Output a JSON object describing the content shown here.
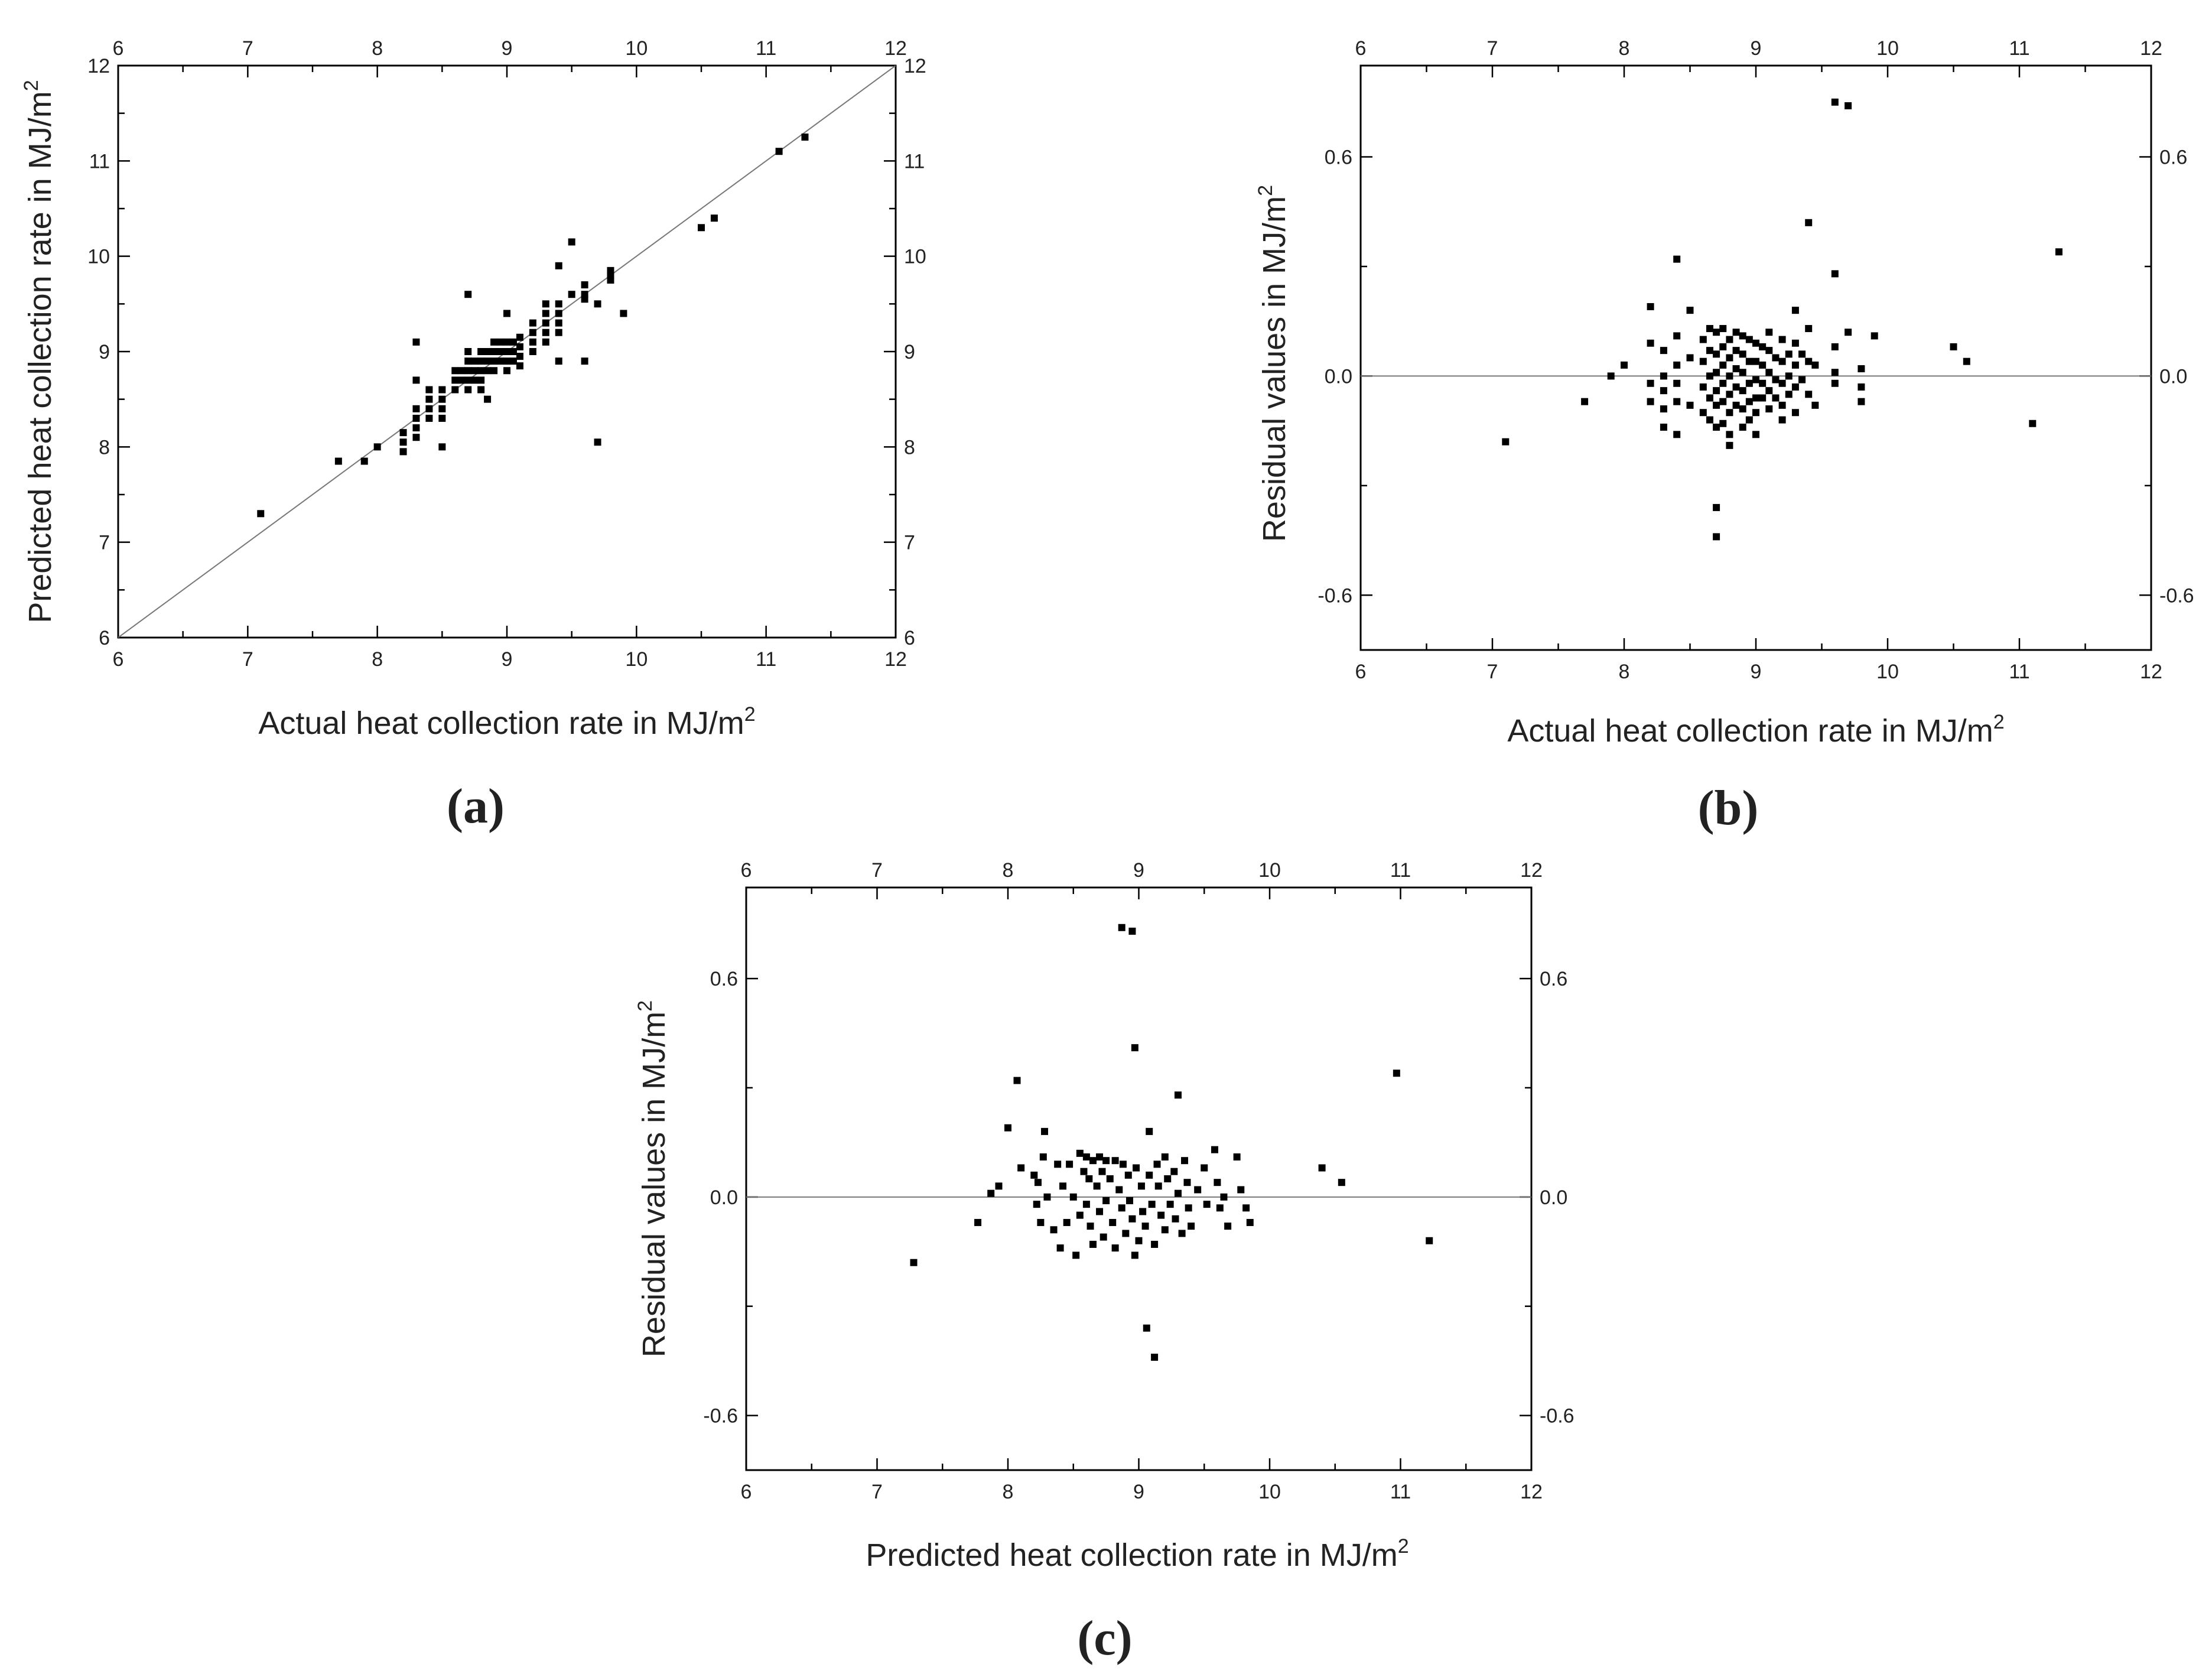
{
  "chart_data": [
    {
      "panel": "(a)",
      "type": "scatter",
      "xlabel": "Actual heat collection rate in MJ/m",
      "ylabel": "Predicted heat collection rate in MJ/m",
      "unit_superscript": "2",
      "xlim": [
        6,
        12
      ],
      "ylim": [
        6,
        12
      ],
      "x_ticks": [
        6,
        7,
        8,
        9,
        10,
        11,
        12
      ],
      "y_ticks": [
        6,
        7,
        8,
        9,
        10,
        11,
        12
      ],
      "y_tick_labels": [
        "6",
        "7",
        "8",
        "9",
        "10",
        "11",
        "12"
      ],
      "grid": false,
      "reference_line": "y = x",
      "points": [
        [
          7.1,
          7.3
        ],
        [
          7.7,
          7.85
        ],
        [
          7.9,
          7.85
        ],
        [
          8.0,
          8.0
        ],
        [
          8.2,
          7.95
        ],
        [
          8.2,
          8.05
        ],
        [
          8.2,
          8.15
        ],
        [
          8.3,
          8.1
        ],
        [
          8.3,
          8.2
        ],
        [
          8.3,
          8.3
        ],
        [
          8.3,
          8.4
        ],
        [
          8.3,
          8.7
        ],
        [
          8.3,
          9.1
        ],
        [
          8.4,
          8.3
        ],
        [
          8.4,
          8.4
        ],
        [
          8.4,
          8.5
        ],
        [
          8.4,
          8.6
        ],
        [
          8.5,
          8.0
        ],
        [
          8.5,
          8.3
        ],
        [
          8.5,
          8.4
        ],
        [
          8.5,
          8.5
        ],
        [
          8.5,
          8.6
        ],
        [
          8.6,
          8.6
        ],
        [
          8.6,
          8.7
        ],
        [
          8.6,
          8.8
        ],
        [
          8.65,
          8.7
        ],
        [
          8.65,
          8.8
        ],
        [
          8.7,
          8.6
        ],
        [
          8.7,
          8.7
        ],
        [
          8.7,
          8.8
        ],
        [
          8.7,
          8.9
        ],
        [
          8.7,
          9.0
        ],
        [
          8.7,
          9.6
        ],
        [
          8.75,
          8.7
        ],
        [
          8.75,
          8.8
        ],
        [
          8.75,
          8.9
        ],
        [
          8.8,
          8.6
        ],
        [
          8.8,
          8.7
        ],
        [
          8.8,
          8.8
        ],
        [
          8.8,
          8.9
        ],
        [
          8.8,
          9.0
        ],
        [
          8.85,
          8.5
        ],
        [
          8.85,
          8.8
        ],
        [
          8.85,
          8.9
        ],
        [
          8.85,
          9.0
        ],
        [
          8.9,
          8.8
        ],
        [
          8.9,
          8.9
        ],
        [
          8.9,
          9.0
        ],
        [
          8.9,
          9.1
        ],
        [
          8.95,
          8.9
        ],
        [
          8.95,
          9.0
        ],
        [
          8.95,
          9.1
        ],
        [
          9.0,
          8.8
        ],
        [
          9.0,
          8.9
        ],
        [
          9.0,
          9.0
        ],
        [
          9.0,
          9.1
        ],
        [
          9.0,
          9.4
        ],
        [
          9.05,
          8.9
        ],
        [
          9.05,
          9.0
        ],
        [
          9.05,
          9.1
        ],
        [
          9.1,
          8.85
        ],
        [
          9.1,
          8.95
        ],
        [
          9.1,
          9.05
        ],
        [
          9.1,
          9.15
        ],
        [
          9.2,
          9.0
        ],
        [
          9.2,
          9.1
        ],
        [
          9.2,
          9.2
        ],
        [
          9.2,
          9.3
        ],
        [
          9.3,
          9.1
        ],
        [
          9.3,
          9.2
        ],
        [
          9.3,
          9.3
        ],
        [
          9.3,
          9.4
        ],
        [
          9.3,
          9.5
        ],
        [
          9.4,
          8.9
        ],
        [
          9.4,
          9.2
        ],
        [
          9.4,
          9.3
        ],
        [
          9.4,
          9.4
        ],
        [
          9.4,
          9.5
        ],
        [
          9.4,
          9.9
        ],
        [
          9.5,
          9.6
        ],
        [
          9.5,
          10.15
        ],
        [
          9.6,
          8.9
        ],
        [
          9.6,
          9.55
        ],
        [
          9.6,
          9.6
        ],
        [
          9.6,
          9.7
        ],
        [
          9.7,
          8.05
        ],
        [
          9.7,
          9.5
        ],
        [
          9.8,
          9.75
        ],
        [
          9.8,
          9.8
        ],
        [
          9.8,
          9.85
        ],
        [
          9.9,
          9.4
        ],
        [
          10.5,
          10.3
        ],
        [
          10.6,
          10.4
        ],
        [
          11.1,
          11.1
        ],
        [
          11.3,
          11.25
        ]
      ]
    },
    {
      "panel": "(b)",
      "type": "scatter",
      "xlabel": "Actual heat collection rate in MJ/m",
      "ylabel": "Residual values in MJ/m",
      "unit_superscript": "2",
      "xlim": [
        6,
        12
      ],
      "ylim": [
        -0.75,
        0.85
      ],
      "x_ticks": [
        6,
        7,
        8,
        9,
        10,
        11,
        12
      ],
      "y_ticks": [
        -0.6,
        0.0,
        0.6
      ],
      "y_tick_labels": [
        "-0.6",
        "0.0",
        "0.6"
      ],
      "grid": false,
      "reference_line": "y = 0",
      "points": [
        [
          7.1,
          -0.18
        ],
        [
          7.7,
          -0.07
        ],
        [
          7.9,
          0.0
        ],
        [
          8.0,
          0.03
        ],
        [
          8.2,
          0.19
        ],
        [
          8.2,
          0.09
        ],
        [
          8.2,
          -0.02
        ],
        [
          8.2,
          -0.07
        ],
        [
          8.3,
          0.07
        ],
        [
          8.3,
          0.0
        ],
        [
          8.3,
          -0.04
        ],
        [
          8.3,
          -0.09
        ],
        [
          8.3,
          -0.14
        ],
        [
          8.4,
          0.32
        ],
        [
          8.4,
          0.11
        ],
        [
          8.4,
          0.03
        ],
        [
          8.4,
          -0.02
        ],
        [
          8.4,
          -0.07
        ],
        [
          8.4,
          -0.16
        ],
        [
          8.5,
          0.18
        ],
        [
          8.5,
          0.05
        ],
        [
          8.5,
          -0.08
        ],
        [
          8.6,
          0.1
        ],
        [
          8.6,
          0.04
        ],
        [
          8.6,
          -0.03
        ],
        [
          8.6,
          -0.1
        ],
        [
          8.65,
          0.13
        ],
        [
          8.65,
          0.07
        ],
        [
          8.65,
          0.0
        ],
        [
          8.65,
          -0.06
        ],
        [
          8.65,
          -0.12
        ],
        [
          8.7,
          0.12
        ],
        [
          8.7,
          0.06
        ],
        [
          8.7,
          0.01
        ],
        [
          8.7,
          -0.04
        ],
        [
          8.7,
          -0.08
        ],
        [
          8.7,
          -0.14
        ],
        [
          8.7,
          -0.36
        ],
        [
          8.7,
          -0.44
        ],
        [
          8.75,
          0.13
        ],
        [
          8.75,
          0.08
        ],
        [
          8.75,
          0.03
        ],
        [
          8.75,
          -0.02
        ],
        [
          8.75,
          -0.07
        ],
        [
          8.75,
          -0.13
        ],
        [
          8.8,
          0.1
        ],
        [
          8.8,
          0.05
        ],
        [
          8.8,
          0.0
        ],
        [
          8.8,
          -0.05
        ],
        [
          8.8,
          -0.1
        ],
        [
          8.8,
          -0.16
        ],
        [
          8.8,
          -0.19
        ],
        [
          8.85,
          0.12
        ],
        [
          8.85,
          0.07
        ],
        [
          8.85,
          0.02
        ],
        [
          8.85,
          -0.03
        ],
        [
          8.85,
          -0.08
        ],
        [
          8.9,
          0.11
        ],
        [
          8.9,
          0.06
        ],
        [
          8.9,
          0.01
        ],
        [
          8.9,
          -0.04
        ],
        [
          8.9,
          -0.09
        ],
        [
          8.9,
          -0.14
        ],
        [
          8.95,
          0.1
        ],
        [
          8.95,
          0.04
        ],
        [
          8.95,
          -0.02
        ],
        [
          8.95,
          -0.07
        ],
        [
          8.95,
          -0.12
        ],
        [
          9.0,
          0.09
        ],
        [
          9.0,
          0.04
        ],
        [
          9.0,
          -0.01
        ],
        [
          9.0,
          -0.06
        ],
        [
          9.0,
          -0.1
        ],
        [
          9.0,
          -0.16
        ],
        [
          9.05,
          0.08
        ],
        [
          9.05,
          0.03
        ],
        [
          9.05,
          -0.02
        ],
        [
          9.05,
          -0.06
        ],
        [
          9.1,
          0.12
        ],
        [
          9.1,
          0.07
        ],
        [
          9.1,
          0.01
        ],
        [
          9.1,
          -0.04
        ],
        [
          9.1,
          -0.09
        ],
        [
          9.15,
          0.05
        ],
        [
          9.15,
          -0.01
        ],
        [
          9.15,
          -0.06
        ],
        [
          9.2,
          0.1
        ],
        [
          9.2,
          0.04
        ],
        [
          9.2,
          -0.02
        ],
        [
          9.2,
          -0.08
        ],
        [
          9.2,
          -0.12
        ],
        [
          9.25,
          0.06
        ],
        [
          9.25,
          0.0
        ],
        [
          9.25,
          -0.05
        ],
        [
          9.3,
          0.18
        ],
        [
          9.3,
          0.09
        ],
        [
          9.3,
          0.03
        ],
        [
          9.3,
          -0.03
        ],
        [
          9.3,
          -0.1
        ],
        [
          9.35,
          0.06
        ],
        [
          9.35,
          -0.01
        ],
        [
          9.4,
          0.42
        ],
        [
          9.4,
          0.13
        ],
        [
          9.4,
          0.04
        ],
        [
          9.4,
          -0.05
        ],
        [
          9.45,
          0.03
        ],
        [
          9.45,
          -0.08
        ],
        [
          9.6,
          0.75
        ],
        [
          9.6,
          0.28
        ],
        [
          9.6,
          0.08
        ],
        [
          9.6,
          0.01
        ],
        [
          9.6,
          -0.02
        ],
        [
          9.7,
          0.74
        ],
        [
          9.7,
          0.12
        ],
        [
          9.8,
          0.02
        ],
        [
          9.8,
          -0.03
        ],
        [
          9.8,
          -0.07
        ],
        [
          9.9,
          0.11
        ],
        [
          10.5,
          0.08
        ],
        [
          10.6,
          0.04
        ],
        [
          11.1,
          -0.13
        ],
        [
          11.3,
          0.34
        ]
      ]
    },
    {
      "panel": "(c)",
      "type": "scatter",
      "xlabel": "Predicted heat collection rate in MJ/m",
      "ylabel": "Residual values in MJ/m",
      "unit_superscript": "2",
      "xlim": [
        6,
        12
      ],
      "ylim": [
        -0.75,
        0.85
      ],
      "x_ticks": [
        6,
        7,
        8,
        9,
        10,
        11,
        12
      ],
      "y_ticks": [
        -0.6,
        0.0,
        0.6
      ],
      "y_tick_labels": [
        "-0.6",
        "0.0",
        "0.6"
      ],
      "grid": false,
      "reference_line": "y = 0",
      "points": [
        [
          7.28,
          -0.18
        ],
        [
          7.77,
          -0.07
        ],
        [
          7.87,
          0.01
        ],
        [
          7.93,
          0.03
        ],
        [
          8.0,
          0.19
        ],
        [
          8.07,
          0.32
        ],
        [
          8.1,
          0.08
        ],
        [
          8.2,
          0.06
        ],
        [
          8.22,
          -0.02
        ],
        [
          8.23,
          0.04
        ],
        [
          8.25,
          -0.07
        ],
        [
          8.27,
          0.11
        ],
        [
          8.28,
          0.18
        ],
        [
          8.3,
          0.0
        ],
        [
          8.35,
          -0.09
        ],
        [
          8.38,
          0.09
        ],
        [
          8.4,
          -0.14
        ],
        [
          8.42,
          0.03
        ],
        [
          8.45,
          -0.07
        ],
        [
          8.47,
          0.09
        ],
        [
          8.5,
          0.0
        ],
        [
          8.52,
          -0.16
        ],
        [
          8.55,
          0.12
        ],
        [
          8.55,
          -0.05
        ],
        [
          8.58,
          0.07
        ],
        [
          8.6,
          0.11
        ],
        [
          8.6,
          -0.02
        ],
        [
          8.62,
          0.05
        ],
        [
          8.63,
          -0.08
        ],
        [
          8.65,
          0.1
        ],
        [
          8.65,
          -0.13
        ],
        [
          8.68,
          0.03
        ],
        [
          8.7,
          0.11
        ],
        [
          8.7,
          -0.04
        ],
        [
          8.72,
          0.07
        ],
        [
          8.73,
          -0.11
        ],
        [
          8.75,
          0.1
        ],
        [
          8.75,
          -0.01
        ],
        [
          8.78,
          0.05
        ],
        [
          8.8,
          -0.07
        ],
        [
          8.82,
          0.1
        ],
        [
          8.82,
          -0.14
        ],
        [
          8.85,
          0.02
        ],
        [
          8.87,
          0.74
        ],
        [
          8.87,
          -0.03
        ],
        [
          8.88,
          0.09
        ],
        [
          8.9,
          -0.1
        ],
        [
          8.92,
          0.06
        ],
        [
          8.93,
          -0.01
        ],
        [
          8.95,
          0.73
        ],
        [
          8.95,
          -0.06
        ],
        [
          8.97,
          0.41
        ],
        [
          8.97,
          -0.16
        ],
        [
          8.98,
          0.08
        ],
        [
          9.0,
          -0.12
        ],
        [
          9.02,
          0.03
        ],
        [
          9.03,
          -0.04
        ],
        [
          9.05,
          -0.08
        ],
        [
          9.06,
          -0.36
        ],
        [
          9.08,
          0.18
        ],
        [
          9.08,
          0.06
        ],
        [
          9.1,
          -0.02
        ],
        [
          9.12,
          -0.44
        ],
        [
          9.12,
          -0.13
        ],
        [
          9.14,
          0.09
        ],
        [
          9.15,
          0.03
        ],
        [
          9.17,
          -0.05
        ],
        [
          9.2,
          0.11
        ],
        [
          9.2,
          -0.09
        ],
        [
          9.22,
          0.05
        ],
        [
          9.24,
          -0.02
        ],
        [
          9.27,
          0.07
        ],
        [
          9.28,
          -0.06
        ],
        [
          9.3,
          0.28
        ],
        [
          9.3,
          0.01
        ],
        [
          9.33,
          -0.1
        ],
        [
          9.35,
          0.1
        ],
        [
          9.37,
          0.04
        ],
        [
          9.38,
          -0.03
        ],
        [
          9.4,
          -0.08
        ],
        [
          9.45,
          0.02
        ],
        [
          9.5,
          0.08
        ],
        [
          9.52,
          -0.02
        ],
        [
          9.58,
          0.13
        ],
        [
          9.6,
          0.04
        ],
        [
          9.62,
          -0.03
        ],
        [
          9.65,
          0.0
        ],
        [
          9.68,
          -0.08
        ],
        [
          9.75,
          0.11
        ],
        [
          9.78,
          0.02
        ],
        [
          9.82,
          -0.03
        ],
        [
          9.85,
          -0.07
        ],
        [
          10.4,
          0.08
        ],
        [
          10.55,
          0.04
        ],
        [
          10.97,
          0.34
        ],
        [
          11.22,
          -0.12
        ]
      ]
    }
  ]
}
